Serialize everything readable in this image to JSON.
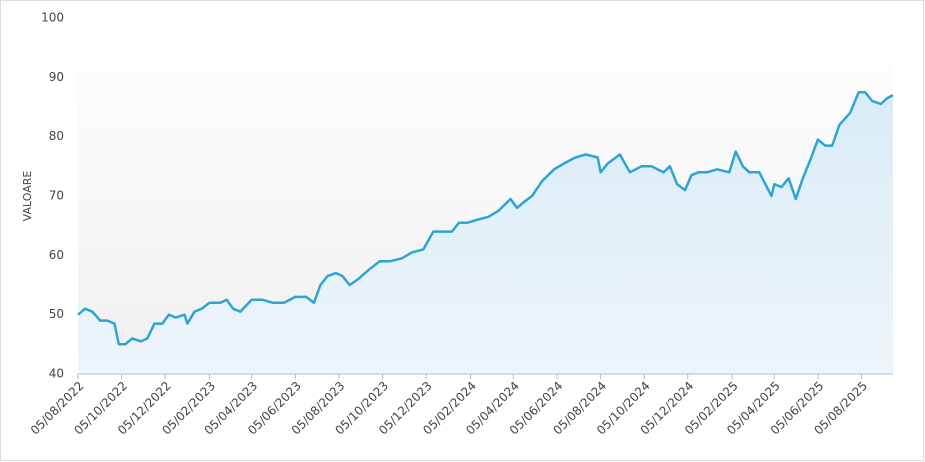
{
  "chart_data": {
    "type": "line",
    "y_label": "VALOARE",
    "color": "#2ea4d6",
    "x": [
      "05/08/2022",
      "15/08/2022",
      "25/08/2022",
      "05/09/2022",
      "15/09/2022",
      "25/09/2022",
      "01/10/2022",
      "10/10/2022",
      "20/10/2022",
      "01/11/2022",
      "10/11/2022",
      "20/11/2022",
      "01/12/2022",
      "10/12/2022",
      "20/12/2022",
      "01/01/2023",
      "05/01/2023",
      "15/01/2023",
      "25/01/2023",
      "05/02/2023",
      "20/02/2023",
      "01/03/2023",
      "10/03/2023",
      "20/03/2023",
      "05/04/2023",
      "20/04/2023",
      "05/05/2023",
      "20/05/2023",
      "05/06/2023",
      "20/06/2023",
      "01/07/2023",
      "10/07/2023",
      "20/07/2023",
      "01/08/2023",
      "10/08/2023",
      "20/08/2023",
      "01/09/2023",
      "15/09/2023",
      "01/10/2023",
      "15/10/2023",
      "01/11/2023",
      "15/11/2023",
      "01/12/2023",
      "15/12/2023",
      "01/01/2024",
      "10/01/2024",
      "20/01/2024",
      "01/02/2024",
      "15/02/2024",
      "01/03/2024",
      "15/03/2024",
      "01/04/2024",
      "10/04/2024",
      "20/04/2024",
      "01/05/2024",
      "15/05/2024",
      "01/06/2024",
      "15/06/2024",
      "01/07/2024",
      "15/07/2024",
      "01/08/2024",
      "05/08/2024",
      "15/08/2024",
      "01/09/2024",
      "15/09/2024",
      "01/10/2024",
      "15/10/2024",
      "01/11/2024",
      "10/11/2024",
      "20/11/2024",
      "01/12/2024",
      "10/12/2024",
      "20/12/2024",
      "01/01/2025",
      "15/01/2025",
      "01/02/2025",
      "10/02/2025",
      "20/02/2025",
      "01/03/2025",
      "15/03/2025",
      "01/04/2025",
      "05/04/2025",
      "15/04/2025",
      "25/04/2025",
      "05/05/2025",
      "15/05/2025",
      "25/05/2025",
      "05/06/2025",
      "15/06/2025",
      "25/06/2025",
      "05/07/2025",
      "20/07/2025",
      "01/08/2025",
      "10/08/2025",
      "20/08/2025",
      "01/09/2025",
      "10/09/2025",
      "18/09/2025"
    ],
    "values": [
      50,
      51,
      50.5,
      49,
      49,
      48.5,
      45,
      45,
      46,
      45.5,
      46,
      48.5,
      48.5,
      50,
      49.5,
      50,
      48.5,
      50.5,
      51,
      52,
      52,
      52.5,
      51,
      50.5,
      52.5,
      52.5,
      52,
      52,
      53,
      53,
      52,
      55,
      56.5,
      57,
      56.5,
      55,
      56,
      57.5,
      59,
      59,
      59.5,
      60.5,
      61,
      64,
      64,
      64,
      65.5,
      65.5,
      66,
      66.5,
      67.5,
      69.5,
      68,
      69,
      70,
      72.5,
      74.5,
      75.5,
      76.5,
      77,
      76.5,
      74,
      75.5,
      77,
      74,
      75,
      75,
      74,
      75,
      72,
      71,
      73.5,
      74,
      74,
      74.5,
      74,
      77.5,
      75,
      74,
      74,
      70,
      72,
      71.5,
      73,
      69.5,
      73,
      76,
      79.5,
      78.5,
      78.5,
      82,
      84,
      87.5,
      87.5,
      86,
      85.5,
      86.5,
      87
    ],
    "xlim": [
      "05/08/2022",
      "18/09/2025"
    ],
    "xticks": [
      "05/08/2022",
      "05/10/2022",
      "05/12/2022",
      "05/02/2023",
      "05/04/2023",
      "05/06/2023",
      "05/08/2023",
      "05/10/2023",
      "05/12/2023",
      "05/02/2024",
      "05/04/2024",
      "05/06/2024",
      "05/08/2024",
      "05/10/2024",
      "05/12/2024",
      "05/02/2025",
      "05/04/2025",
      "05/06/2025",
      "05/08/2025"
    ],
    "ylim": [
      40,
      100
    ],
    "yticks": [
      40,
      50,
      60,
      70,
      80,
      90,
      100
    ]
  }
}
